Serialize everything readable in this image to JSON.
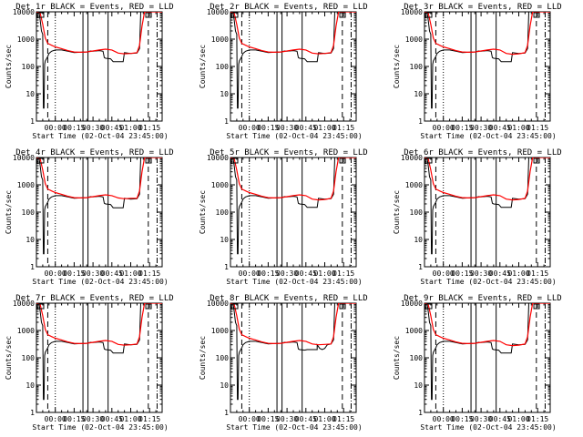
{
  "chart_data": {
    "type": "line",
    "layout": {
      "rows": 3,
      "cols": 3
    },
    "y_scale": "log",
    "ylim": [
      1,
      10000
    ],
    "xlim": [
      "23:45",
      "01:25"
    ],
    "x_tick_labels": [
      "00:00",
      "00:15",
      "00:30",
      "00:45",
      "01:00",
      "01:15"
    ],
    "y_tick_labels": [
      "1",
      "10",
      "100",
      "1000",
      "10000"
    ],
    "ylabel": "Counts/sec",
    "xlabel": "Start Time (02-Oct-04 23:45:00)",
    "grid": false,
    "series_colors": {
      "events": "#000000",
      "lld": "#ff0000"
    },
    "panels": [
      {
        "title": "Det 1r BLACK = Events, RED = LLD",
        "events_dip": 150,
        "lld_sag": 310,
        "notch": 0
      },
      {
        "title": "Det 2r BLACK = Events, RED = LLD",
        "events_dip": 150,
        "lld_sag": 310,
        "notch": 0
      },
      {
        "title": "Det 3r BLACK = Events, RED = LLD",
        "events_dip": 150,
        "lld_sag": 300,
        "notch": 0
      },
      {
        "title": "Det 4r BLACK = Events, RED = LLD",
        "events_dip": 145,
        "lld_sag": 330,
        "notch": 0
      },
      {
        "title": "Det 5r BLACK = Events, RED = LLD",
        "events_dip": 150,
        "lld_sag": 300,
        "notch": 0
      },
      {
        "title": "Det 6r BLACK = Events, RED = LLD",
        "events_dip": 150,
        "lld_sag": 300,
        "notch": 0
      },
      {
        "title": "Det 7r BLACK = Events, RED = LLD",
        "events_dip": 150,
        "lld_sag": 310,
        "notch": 0
      },
      {
        "title": "Det 8r BLACK = Events, RED = LLD",
        "events_dip": 200,
        "lld_sag": 320,
        "notch": 1
      },
      {
        "title": "Det 9r BLACK = Events, RED = LLD",
        "events_dip": 150,
        "lld_sag": 300,
        "notch": 0
      }
    ]
  }
}
